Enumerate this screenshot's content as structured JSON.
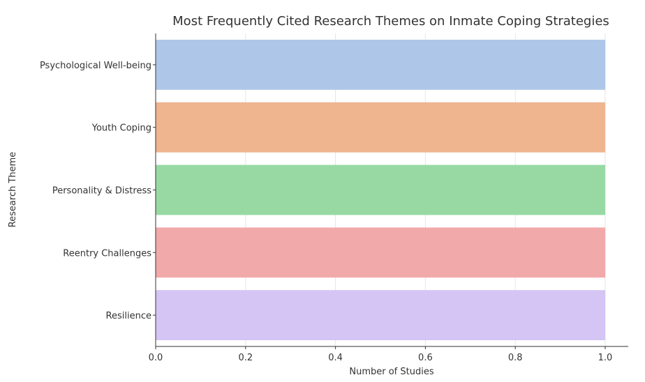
{
  "chart_data": {
    "type": "bar",
    "orientation": "horizontal",
    "title": "Most Frequently Cited Research Themes on Inmate Coping Strategies",
    "xlabel": "Number of Studies",
    "ylabel": "Research Theme",
    "categories": [
      "Psychological Well-being",
      "Youth Coping",
      "Personality & Distress",
      "Reentry Challenges",
      "Resilience"
    ],
    "values": [
      1,
      1,
      1,
      1,
      1
    ],
    "colors": [
      "#aec7e8",
      "#eeb58f",
      "#98d9a3",
      "#f2a9a9",
      "#d4c5f4"
    ],
    "xlim": [
      0,
      1.0
    ],
    "xticks": [
      "0.0",
      "0.2",
      "0.4",
      "0.6",
      "0.8",
      "1.0"
    ],
    "grid": true,
    "legend": "none"
  }
}
